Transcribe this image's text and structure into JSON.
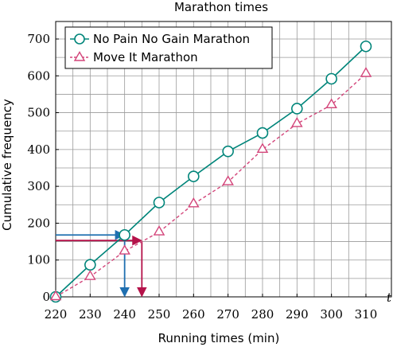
{
  "chart_data": {
    "type": "line",
    "title": "Marathon times",
    "xlabel": "Running times (min)",
    "ylabel": "Cumulative frequency",
    "x_var": "t",
    "x": [
      220,
      230,
      240,
      250,
      260,
      270,
      280,
      290,
      300,
      310
    ],
    "xlim": [
      220,
      310
    ],
    "ylim": [
      0,
      700
    ],
    "x_ticks": [
      220,
      230,
      240,
      250,
      260,
      270,
      280,
      290,
      300,
      310
    ],
    "y_ticks": [
      0,
      100,
      200,
      300,
      400,
      500,
      600,
      700
    ],
    "grid": true,
    "legend_position": "top-left",
    "series": [
      {
        "name": "No Pain No Gain Marathon",
        "values": [
          0,
          87,
          168,
          256,
          327,
          395,
          445,
          511,
          592,
          680
        ],
        "color": "#00857a",
        "marker": "circle",
        "line": "solid"
      },
      {
        "name": "Move It Marathon",
        "values": [
          0,
          55,
          124,
          176,
          252,
          312,
          400,
          470,
          521,
          606
        ],
        "color": "#d3457a",
        "marker": "triangle",
        "line": "dashed"
      }
    ],
    "annotations": [
      {
        "y": 168,
        "x": 240,
        "color": "#1f6fb0"
      },
      {
        "y": 153,
        "x": 245,
        "color": "#b5124a"
      }
    ]
  }
}
